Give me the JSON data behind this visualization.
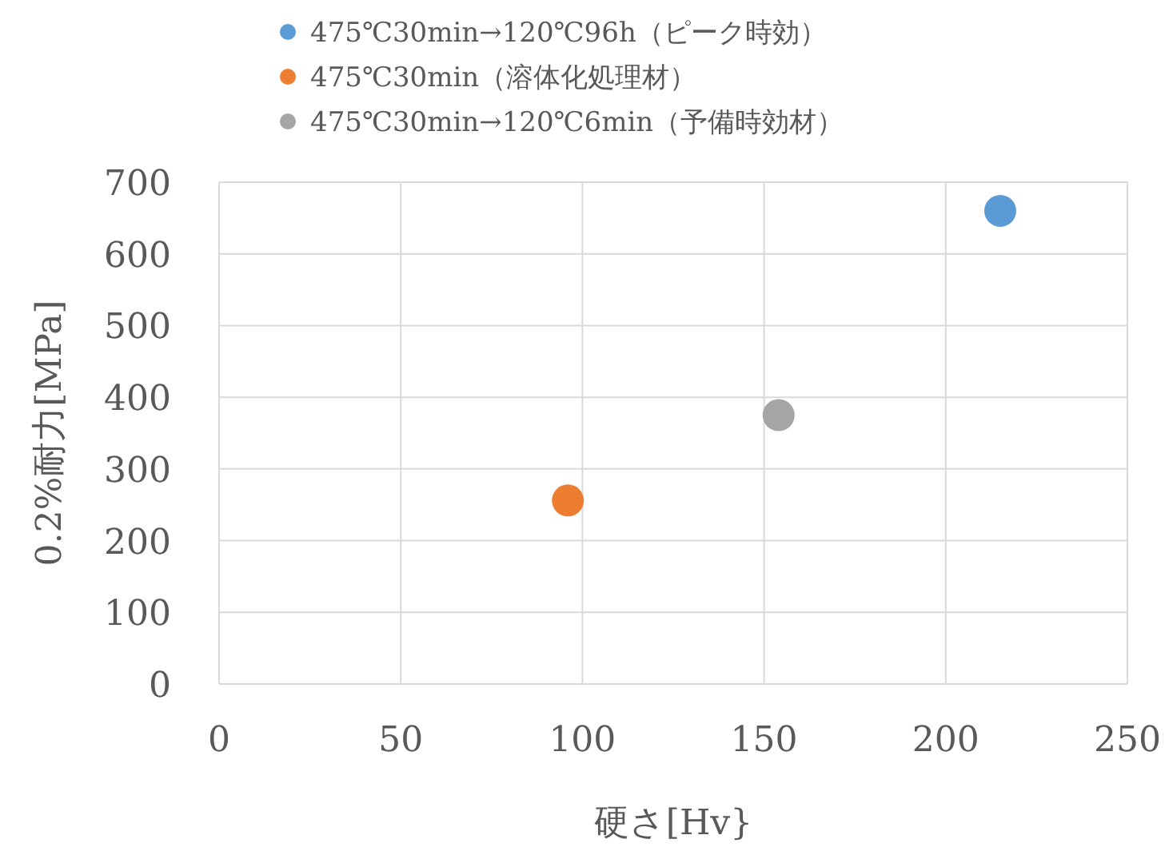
{
  "chart_data": {
    "type": "scatter",
    "xlabel": "硬さ[Hv}",
    "ylabel": "0.2%耐力[MPa]",
    "xlim": [
      0,
      250
    ],
    "xticks": [
      0,
      50,
      100,
      150,
      200,
      250
    ],
    "ylim": [
      0,
      700
    ],
    "yticks": [
      0,
      100,
      200,
      300,
      400,
      500,
      600,
      700
    ],
    "grid": true,
    "legend": "top",
    "marker": "circle",
    "series": [
      {
        "name": "475℃30min→120℃96h（ピーク時効）",
        "color": "#5b9bd5",
        "x": [
          215
        ],
        "values": [
          660
        ]
      },
      {
        "name": "475℃30min（溶体化処理材）",
        "color": "#ed7d31",
        "x": [
          96
        ],
        "values": [
          256
        ]
      },
      {
        "name": "475℃30min→120℃6min（予備時効材）",
        "color": "#a5a5a5",
        "x": [
          154
        ],
        "values": [
          375
        ]
      }
    ]
  }
}
